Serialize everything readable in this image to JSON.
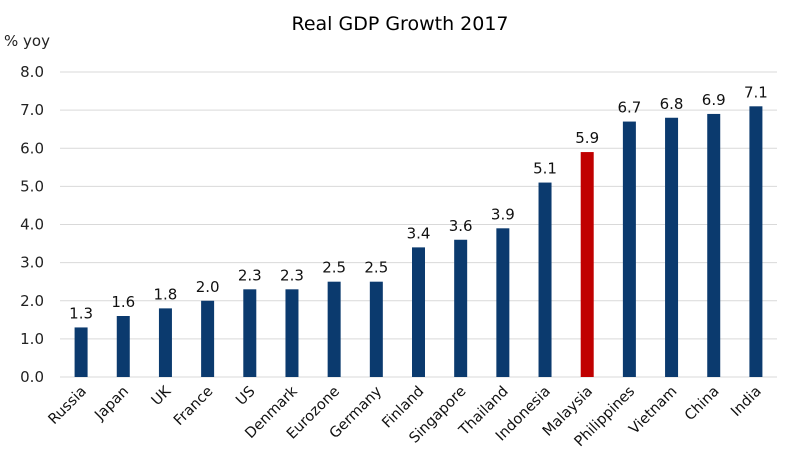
{
  "chart_data": {
    "type": "bar",
    "title": "Real GDP Growth 2017",
    "xlabel": "",
    "ylabel": "% yoy",
    "ylim": [
      0,
      8
    ],
    "yticks": [
      "0.0",
      "1.0",
      "2.0",
      "3.0",
      "4.0",
      "5.0",
      "6.0",
      "7.0",
      "8.0"
    ],
    "grid": true,
    "legend": "none",
    "categories": [
      "Russia",
      "Japan",
      "UK",
      "France",
      "US",
      "Denmark",
      "Eurozone",
      "Germany",
      "Finland",
      "Singapore",
      "Thailand",
      "Indonesia",
      "Malaysia",
      "Philippines",
      "Vietnam",
      "China",
      "India"
    ],
    "values": [
      1.3,
      1.6,
      1.8,
      2.0,
      2.3,
      2.3,
      2.5,
      2.5,
      3.4,
      3.6,
      3.9,
      5.1,
      5.9,
      6.7,
      6.8,
      6.9,
      7.1
    ],
    "labels": [
      "1.3",
      "1.6",
      "1.8",
      "2.0",
      "2.3",
      "2.3",
      "2.5",
      "2.5",
      "3.4",
      "3.6",
      "3.9",
      "5.1",
      "5.9",
      "6.7",
      "6.8",
      "6.9",
      "7.1"
    ],
    "highlight": "Malaysia",
    "colors": {
      "default": "#0b3a6e",
      "highlight": "#c00000"
    }
  }
}
